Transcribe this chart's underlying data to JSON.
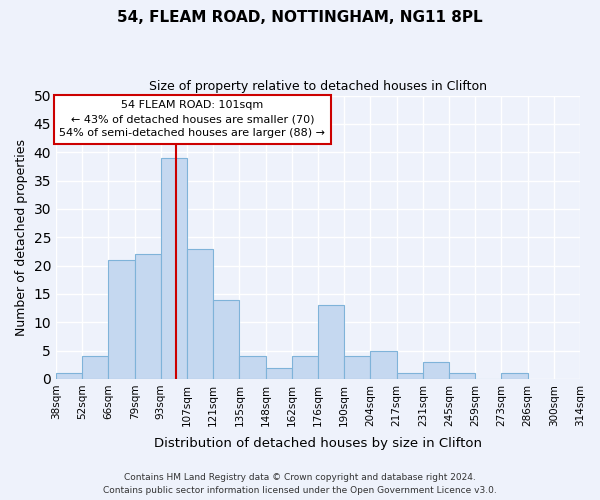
{
  "title": "54, FLEAM ROAD, NOTTINGHAM, NG11 8PL",
  "subtitle": "Size of property relative to detached houses in Clifton",
  "xlabel": "Distribution of detached houses by size in Clifton",
  "ylabel": "Number of detached properties",
  "bar_values": [
    1,
    4,
    21,
    22,
    39,
    23,
    14,
    4,
    2,
    4,
    13,
    4,
    5,
    1,
    3,
    1,
    0,
    1
  ],
  "tick_labels": [
    "38sqm",
    "52sqm",
    "66sqm",
    "79sqm",
    "93sqm",
    "107sqm",
    "121sqm",
    "135sqm",
    "148sqm",
    "162sqm",
    "176sqm",
    "190sqm",
    "204sqm",
    "217sqm",
    "231sqm",
    "245sqm",
    "259sqm",
    "273sqm",
    "286sqm",
    "300sqm",
    "314sqm"
  ],
  "bar_color": "#c5d8f0",
  "bar_edge_color": "#7fb3d9",
  "background_color": "#eef2fb",
  "grid_color": "#ffffff",
  "marker_bin_index": 4,
  "marker_line_color": "#cc0000",
  "annotation_line1": "54 FLEAM ROAD: 101sqm",
  "annotation_line2": "← 43% of detached houses are smaller (70)",
  "annotation_line3": "54% of semi-detached houses are larger (88) →",
  "annotation_box_color": "#ffffff",
  "annotation_box_edge": "#cc0000",
  "ylim": [
    0,
    50
  ],
  "yticks": [
    0,
    5,
    10,
    15,
    20,
    25,
    30,
    35,
    40,
    45,
    50
  ],
  "footer_line1": "Contains HM Land Registry data © Crown copyright and database right 2024.",
  "footer_line2": "Contains public sector information licensed under the Open Government Licence v3.0."
}
